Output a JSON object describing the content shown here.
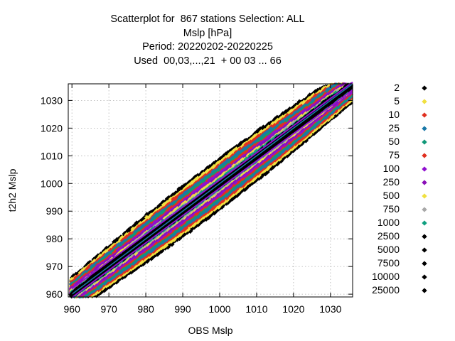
{
  "chart_data": {
    "type": "scatter",
    "title_lines": [
      "Scatterplot for  867 stations Selection: ALL",
      "Mslp [hPa]",
      "Period: 20220202-20220225",
      "Used  00,03,...,21  + 00 03 ... 66"
    ],
    "xlabel": "OBS Mslp",
    "ylabel": "t2h2 Mslp",
    "xlim": [
      959,
      1036
    ],
    "ylim": [
      959,
      1036
    ],
    "xticks": [
      960,
      970,
      980,
      990,
      1000,
      1010,
      1020,
      1030
    ],
    "yticks": [
      960,
      970,
      980,
      990,
      1000,
      1010,
      1020,
      1030
    ],
    "grid": true,
    "legend_position": "right",
    "density_classes": [
      {
        "label": "2",
        "color": "#000000",
        "half_width": 9.0
      },
      {
        "label": "5",
        "color": "#f0e040",
        "half_width": 7.8
      },
      {
        "label": "10",
        "color": "#e03020",
        "half_width": 6.8
      },
      {
        "label": "25",
        "color": "#1a78a8",
        "half_width": 5.9
      },
      {
        "label": "50",
        "color": "#109878",
        "half_width": 5.0
      },
      {
        "label": "75",
        "color": "#e03020",
        "half_width": 4.3
      },
      {
        "label": "100",
        "color": "#9010d0",
        "half_width": 3.6
      },
      {
        "label": "250",
        "color": "#8a10b8",
        "half_width": 2.9
      },
      {
        "label": "500",
        "color": "#f0e040",
        "half_width": 2.3
      },
      {
        "label": "750",
        "color": "#a8a8a8",
        "half_width": 1.9
      },
      {
        "label": "1000",
        "color": "#10a080",
        "half_width": 1.5
      },
      {
        "label": "2500",
        "color": "#000000",
        "half_width": 1.1
      },
      {
        "label": "5000",
        "color": "#000000",
        "half_width": 0.8
      },
      {
        "label": "7500",
        "color": "#000000",
        "half_width": 0.55
      },
      {
        "label": "10000",
        "color": "#000000",
        "half_width": 0.35
      },
      {
        "label": "25000",
        "color": "#000000",
        "half_width": 0.2
      }
    ]
  }
}
